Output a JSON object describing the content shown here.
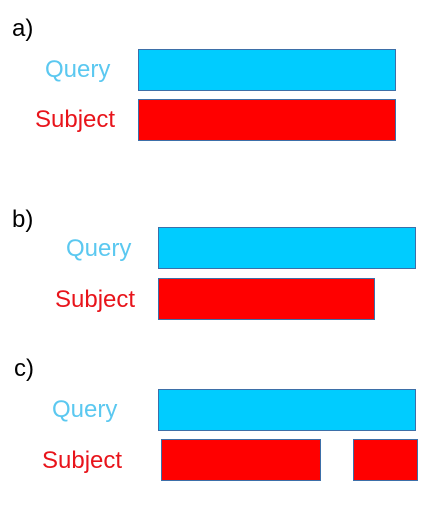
{
  "panels": [
    {
      "letter": "a)",
      "query_label": "Query",
      "subject_label": "Subject"
    },
    {
      "letter": "b)",
      "query_label": "Query",
      "subject_label": "Subject"
    },
    {
      "letter": "c)",
      "query_label": "Query",
      "subject_label": "Subject"
    }
  ],
  "colors": {
    "query": "#00ccff",
    "subject": "#ff0000",
    "query_text": "#5bc8f0",
    "subject_text": "#e8141b"
  }
}
